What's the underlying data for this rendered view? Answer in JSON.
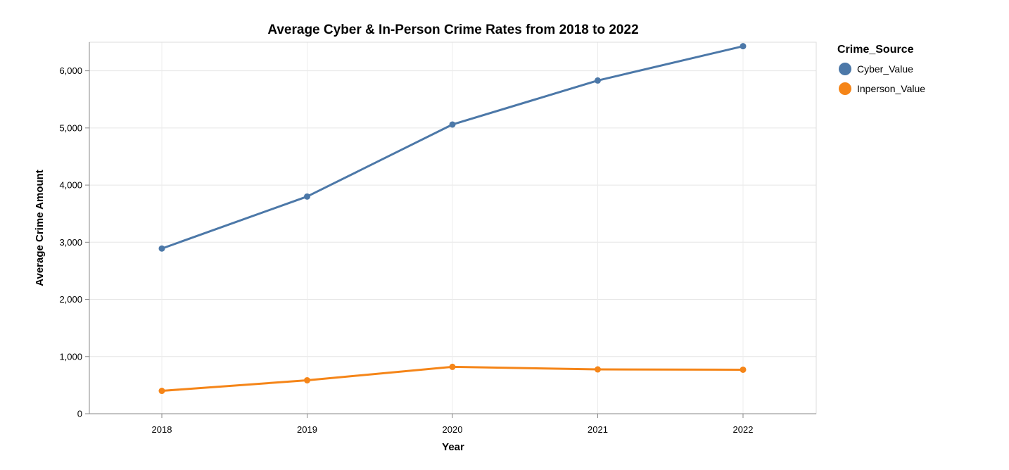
{
  "chart_data": {
    "type": "line",
    "title": "Average Cyber & In-Person Crime Rates from 2018 to 2022",
    "xlabel": "Year",
    "ylabel": "Average Crime Amount",
    "categories": [
      "2018",
      "2019",
      "2020",
      "2021",
      "2022"
    ],
    "ylim": [
      0,
      6500
    ],
    "yticks": [
      0,
      1000,
      2000,
      3000,
      4000,
      5000,
      6000
    ],
    "ytick_labels": [
      "0",
      "1,000",
      "2,000",
      "3,000",
      "4,000",
      "5,000",
      "6,000"
    ],
    "grid": true,
    "legend": {
      "title": "Crime_Source",
      "position": "right"
    },
    "series": [
      {
        "name": "Cyber_Value",
        "color": "#4c78a8",
        "values": [
          2890,
          3800,
          5060,
          5830,
          6430
        ]
      },
      {
        "name": "Inperson_Value",
        "color": "#f58518",
        "values": [
          400,
          585,
          820,
          775,
          770
        ]
      }
    ]
  }
}
